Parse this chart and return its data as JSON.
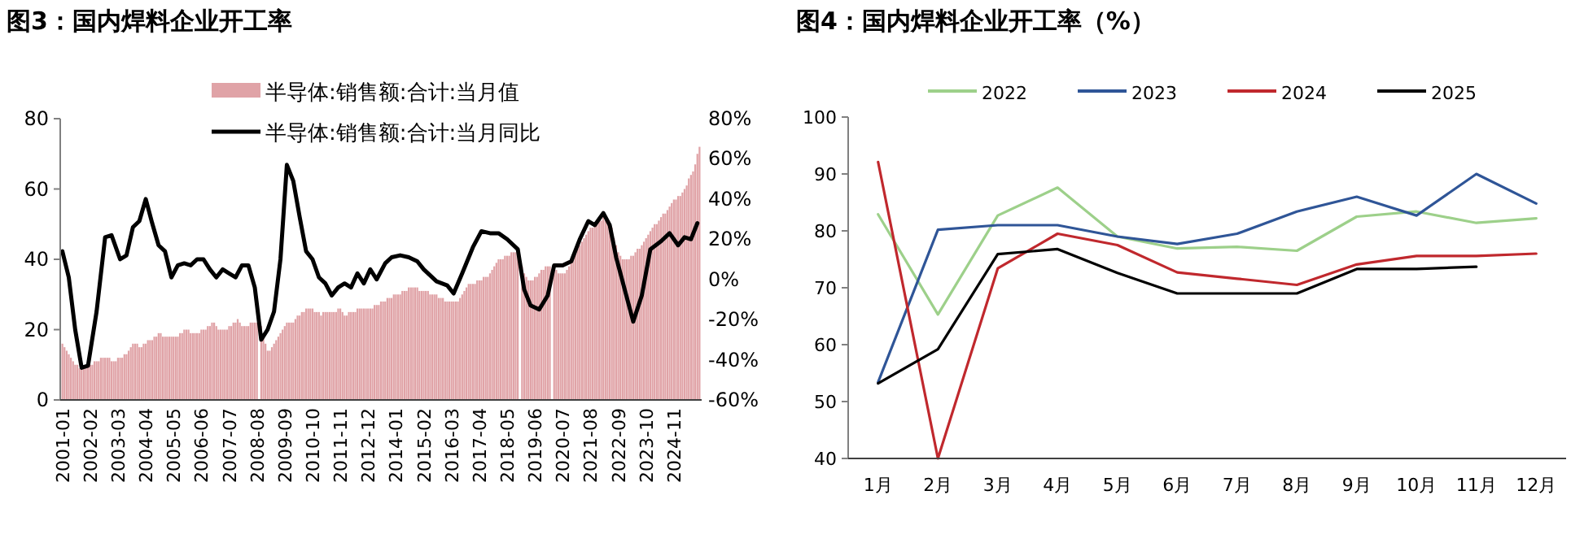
{
  "chart_data": [
    {
      "type": "bar",
      "title": "图3：国内焊料企业开工率",
      "legend": "top",
      "xlim": [
        "2000-12",
        "2025-12"
      ],
      "xticks": [
        "2001-01",
        "2002-02",
        "2003-03",
        "2004-04",
        "2005-05",
        "2006-06",
        "2007-07",
        "2008-08",
        "2009-09",
        "2010-10",
        "2011-11",
        "2012-12",
        "2014-01",
        "2015-02",
        "2016-03",
        "2017-04",
        "2018-05",
        "2019-06",
        "2020-07",
        "2021-08",
        "2022-09",
        "2023-10",
        "2024-11"
      ],
      "ylim": [
        0,
        80
      ],
      "yticks": [
        0,
        20,
        40,
        60,
        80
      ],
      "y2lim": [
        -60,
        80
      ],
      "y2ticks": [
        {
          "value": -60,
          "label": "-60%"
        },
        {
          "value": -40,
          "label": "-40%"
        },
        {
          "value": -20,
          "label": "-20%"
        },
        {
          "value": 0,
          "label": "0%"
        },
        {
          "value": 20,
          "label": "20%"
        },
        {
          "value": 40,
          "label": "40%"
        },
        {
          "value": 60,
          "label": "60%"
        },
        {
          "value": 80,
          "label": "80%"
        }
      ],
      "x": [
        "2001-01",
        "2001-02",
        "2001-03",
        "2001-04",
        "2001-05",
        "2001-06",
        "2001-07",
        "2001-08",
        "2001-09",
        "2001-10",
        "2001-11",
        "2001-12",
        "2002-01",
        "2002-02",
        "2002-03",
        "2002-04",
        "2002-05",
        "2002-06",
        "2002-07",
        "2002-08",
        "2002-09",
        "2002-10",
        "2002-11",
        "2002-12",
        "2003-01",
        "2003-02",
        "2003-03",
        "2003-04",
        "2003-05",
        "2003-06",
        "2003-07",
        "2003-08",
        "2003-09",
        "2003-10",
        "2003-11",
        "2003-12",
        "2004-01",
        "2004-02",
        "2004-03",
        "2004-04",
        "2004-05",
        "2004-06",
        "2004-07",
        "2004-08",
        "2004-09",
        "2004-10",
        "2004-11",
        "2004-12",
        "2005-01",
        "2005-02",
        "2005-03",
        "2005-04",
        "2005-05",
        "2005-06",
        "2005-07",
        "2005-08",
        "2005-09",
        "2005-10",
        "2005-11",
        "2005-12",
        "2006-01",
        "2006-02",
        "2006-03",
        "2006-04",
        "2006-05",
        "2006-06",
        "2006-07",
        "2006-08",
        "2006-09",
        "2006-10",
        "2006-11",
        "2006-12",
        "2007-01",
        "2007-02",
        "2007-03",
        "2007-04",
        "2007-05",
        "2007-06",
        "2007-07",
        "2007-08",
        "2007-09",
        "2007-10",
        "2007-11",
        "2007-12",
        "2008-01",
        "2008-02",
        "2008-03",
        "2008-04",
        "2008-05",
        "2008-06",
        "2008-07",
        "2008-08",
        "2008-10",
        "2008-11",
        "2008-12",
        "2009-01",
        "2009-02",
        "2009-03",
        "2009-04",
        "2009-05",
        "2009-06",
        "2009-07",
        "2009-08",
        "2009-09",
        "2009-10",
        "2009-11",
        "2009-12",
        "2010-01",
        "2010-02",
        "2010-03",
        "2010-04",
        "2010-05",
        "2010-06",
        "2010-07",
        "2010-08",
        "2010-09",
        "2010-10",
        "2010-11",
        "2010-12",
        "2011-01",
        "2011-02",
        "2011-03",
        "2011-04",
        "2011-05",
        "2011-06",
        "2011-07",
        "2011-08",
        "2011-09",
        "2011-10",
        "2011-11",
        "2011-12",
        "2012-01",
        "2012-02",
        "2012-03",
        "2012-04",
        "2012-05",
        "2012-06",
        "2012-07",
        "2012-08",
        "2012-09",
        "2012-10",
        "2012-11",
        "2012-12",
        "2013-01",
        "2013-02",
        "2013-03",
        "2013-04",
        "2013-05",
        "2013-06",
        "2013-07",
        "2013-08",
        "2013-09",
        "2013-10",
        "2013-11",
        "2013-12",
        "2014-01",
        "2014-02",
        "2014-03",
        "2014-04",
        "2014-05",
        "2014-06",
        "2014-07",
        "2014-08",
        "2014-09",
        "2014-10",
        "2014-11",
        "2014-12",
        "2015-01",
        "2015-02",
        "2015-03",
        "2015-04",
        "2015-05",
        "2015-06",
        "2015-07",
        "2015-08",
        "2015-09",
        "2015-10",
        "2015-11",
        "2015-12",
        "2016-01",
        "2016-02",
        "2016-03",
        "2016-04",
        "2016-05",
        "2016-06",
        "2016-07",
        "2016-08",
        "2016-09",
        "2016-10",
        "2016-11",
        "2016-12",
        "2017-01",
        "2017-02",
        "2017-03",
        "2017-04",
        "2017-05",
        "2017-06",
        "2017-07",
        "2017-08",
        "2017-09",
        "2017-10",
        "2017-11",
        "2017-12",
        "2018-01",
        "2018-02",
        "2018-03",
        "2018-04",
        "2018-05",
        "2018-06",
        "2018-07",
        "2018-08",
        "2018-09",
        "2018-10",
        "2018-12",
        "2019-01",
        "2019-02",
        "2019-03",
        "2019-04",
        "2019-05",
        "2019-06",
        "2019-07",
        "2019-08",
        "2019-09",
        "2019-10",
        "2019-11",
        "2019-12",
        "2020-01",
        "2020-03",
        "2020-04",
        "2020-05",
        "2020-06",
        "2020-07",
        "2020-08",
        "2020-09",
        "2020-10",
        "2020-11",
        "2020-12",
        "2021-01",
        "2021-02",
        "2021-03",
        "2021-04",
        "2021-05",
        "2021-06",
        "2021-07",
        "2021-08",
        "2021-09",
        "2021-10",
        "2021-11",
        "2021-12",
        "2022-01",
        "2022-02",
        "2022-03",
        "2022-04",
        "2022-05",
        "2022-06",
        "2022-07",
        "2022-08",
        "2022-09",
        "2022-10",
        "2022-11",
        "2022-12",
        "2023-01",
        "2023-02",
        "2023-03",
        "2023-04",
        "2023-05",
        "2023-06",
        "2023-07",
        "2023-08",
        "2023-09",
        "2023-10",
        "2023-11",
        "2023-12",
        "2024-01",
        "2024-02",
        "2024-03",
        "2024-04",
        "2024-05",
        "2024-06",
        "2024-07",
        "2024-08",
        "2024-09",
        "2024-10",
        "2024-11",
        "2024-12",
        "2025-01",
        "2025-02",
        "2025-03",
        "2025-04",
        "2025-05",
        "2025-06",
        "2025-07",
        "2025-08",
        "2025-09",
        "2025-10",
        "2025-11"
      ],
      "series": [
        {
          "name": "半导体:销售额:合计:当月值",
          "color": "#e0a3a7",
          "values": [
            16,
            15,
            14,
            13,
            12,
            11,
            10,
            10,
            9,
            9,
            9,
            9,
            10,
            10,
            10,
            11,
            11,
            11,
            12,
            12,
            12,
            12,
            12,
            11,
            11,
            11,
            12,
            12,
            12,
            13,
            13,
            14,
            15,
            16,
            16,
            16,
            15,
            15,
            16,
            16,
            17,
            17,
            17,
            18,
            18,
            19,
            19,
            18,
            18,
            18,
            18,
            18,
            18,
            18,
            18,
            19,
            19,
            20,
            20,
            20,
            19,
            19,
            19,
            19,
            19,
            20,
            20,
            20,
            21,
            21,
            22,
            22,
            21,
            20,
            20,
            20,
            20,
            20,
            21,
            21,
            22,
            22,
            23,
            22,
            21,
            21,
            21,
            21,
            22,
            22,
            22,
            22,
            21,
            18,
            16,
            14,
            14,
            15,
            16,
            17,
            18,
            19,
            20,
            21,
            22,
            22,
            22,
            22,
            23,
            24,
            24,
            25,
            25,
            26,
            26,
            26,
            26,
            25,
            25,
            25,
            24,
            25,
            25,
            25,
            25,
            25,
            25,
            25,
            26,
            26,
            25,
            24,
            24,
            25,
            25,
            25,
            25,
            26,
            26,
            26,
            26,
            26,
            26,
            26,
            26,
            27,
            27,
            27,
            28,
            28,
            28,
            29,
            29,
            29,
            30,
            30,
            30,
            30,
            31,
            31,
            31,
            32,
            32,
            32,
            32,
            32,
            31,
            31,
            31,
            31,
            31,
            30,
            30,
            30,
            30,
            29,
            29,
            29,
            28,
            28,
            28,
            28,
            28,
            28,
            28,
            29,
            30,
            31,
            32,
            33,
            33,
            33,
            33,
            34,
            34,
            34,
            35,
            35,
            35,
            36,
            37,
            38,
            39,
            40,
            40,
            40,
            41,
            41,
            41,
            42,
            42,
            42,
            41,
            38,
            36,
            35,
            34,
            34,
            34,
            35,
            35,
            36,
            37,
            37,
            38,
            38,
            38,
            37,
            37,
            36,
            36,
            36,
            36,
            37,
            38,
            40,
            41,
            42,
            43,
            44,
            45,
            46,
            47,
            48,
            49,
            49,
            50,
            51,
            51,
            51,
            52,
            51,
            50,
            49,
            49,
            46,
            44,
            42,
            41,
            40,
            40,
            40,
            40,
            41,
            41,
            42,
            43,
            43,
            44,
            45,
            46,
            47,
            48,
            49,
            50,
            50,
            51,
            52,
            53,
            53,
            54,
            55,
            56,
            57,
            57,
            58,
            58,
            59,
            60,
            61,
            63,
            64,
            65,
            67,
            70,
            72
          ]
        },
        {
          "name": "半导体:销售额:合计:当月同比",
          "type": "line",
          "axis": "y2",
          "color": "#000000",
          "x": [
            "2001-01",
            "2001-04",
            "2001-07",
            "2001-10",
            "2002-01",
            "2002-05",
            "2002-09",
            "2002-12",
            "2003-04",
            "2003-07",
            "2003-10",
            "2004-01",
            "2004-04",
            "2004-07",
            "2004-10",
            "2005-01",
            "2005-04",
            "2005-07",
            "2005-10",
            "2006-01",
            "2006-04",
            "2006-07",
            "2006-10",
            "2007-01",
            "2007-04",
            "2007-07",
            "2007-10",
            "2008-01",
            "2008-04",
            "2008-07",
            "2008-10",
            "2009-01",
            "2009-04",
            "2009-07",
            "2009-10",
            "2010-01",
            "2010-04",
            "2010-07",
            "2010-10",
            "2011-01",
            "2011-04",
            "2011-07",
            "2011-10",
            "2012-01",
            "2012-04",
            "2012-07",
            "2012-10",
            "2013-01",
            "2013-04",
            "2013-08",
            "2013-11",
            "2014-03",
            "2014-07",
            "2014-11",
            "2015-02",
            "2015-08",
            "2016-01",
            "2016-04",
            "2016-08",
            "2017-01",
            "2017-05",
            "2017-09",
            "2018-01",
            "2018-05",
            "2018-10",
            "2019-01",
            "2019-04",
            "2019-08",
            "2019-12",
            "2020-03",
            "2020-07",
            "2020-11",
            "2021-03",
            "2021-07",
            "2021-10",
            "2022-02",
            "2022-05",
            "2022-08",
            "2022-12",
            "2023-04",
            "2023-08",
            "2023-12",
            "2024-05",
            "2024-09",
            "2025-01",
            "2025-04",
            "2025-07",
            "2025-10"
          ],
          "values": [
            14,
            1,
            -25,
            -44,
            -43,
            -16,
            21,
            22,
            10,
            12,
            26,
            29,
            40,
            28,
            17,
            14,
            1,
            7,
            8,
            7,
            10,
            10,
            5,
            1,
            5,
            3,
            1,
            7,
            7,
            -4,
            -30,
            -25,
            -16,
            10,
            57,
            49,
            31,
            14,
            10,
            1,
            -2,
            -8,
            -4,
            -2,
            -4,
            3,
            -2,
            5,
            0,
            8,
            11,
            12,
            11,
            9,
            5,
            -1,
            -3,
            -7,
            3,
            16,
            24,
            23,
            23,
            20,
            15,
            -5,
            -13,
            -15,
            -8,
            7,
            7,
            9,
            20,
            29,
            27,
            33,
            27,
            11,
            -5,
            -21,
            -8,
            15,
            19,
            23,
            17,
            21,
            20,
            28
          ]
        }
      ]
    },
    {
      "type": "line",
      "title": "图4：国内焊料企业开工率（%）",
      "legend": "top",
      "categories": [
        "1月",
        "2月",
        "3月",
        "4月",
        "5月",
        "6月",
        "7月",
        "8月",
        "9月",
        "10月",
        "11月",
        "12月"
      ],
      "ylim": [
        40,
        100
      ],
      "yticks": [
        40,
        50,
        60,
        70,
        80,
        90,
        100
      ],
      "series": [
        {
          "name": "2022",
          "color": "#9dd08a",
          "values": [
            82.9,
            65.3,
            82.7,
            87.6,
            79.0,
            76.9,
            77.2,
            76.5,
            82.5,
            83.4,
            81.4,
            82.2
          ]
        },
        {
          "name": "2023",
          "color": "#2f5597",
          "values": [
            53.4,
            80.2,
            81.0,
            81.0,
            79.0,
            77.7,
            79.5,
            83.4,
            86.0,
            82.7,
            90.0,
            84.8
          ]
        },
        {
          "name": "2024",
          "color": "#c0282d",
          "values": [
            92.1,
            40,
            73.4,
            79.5,
            77.5,
            72.7,
            71.6,
            70.5,
            74.1,
            75.6,
            75.6,
            76.0
          ]
        },
        {
          "name": "2025",
          "color": "#000000",
          "values": [
            53.2,
            59.2,
            75.9,
            76.8,
            72.6,
            69.0,
            69.0,
            69.0,
            73.3,
            73.3,
            73.7,
            null
          ]
        }
      ]
    }
  ]
}
